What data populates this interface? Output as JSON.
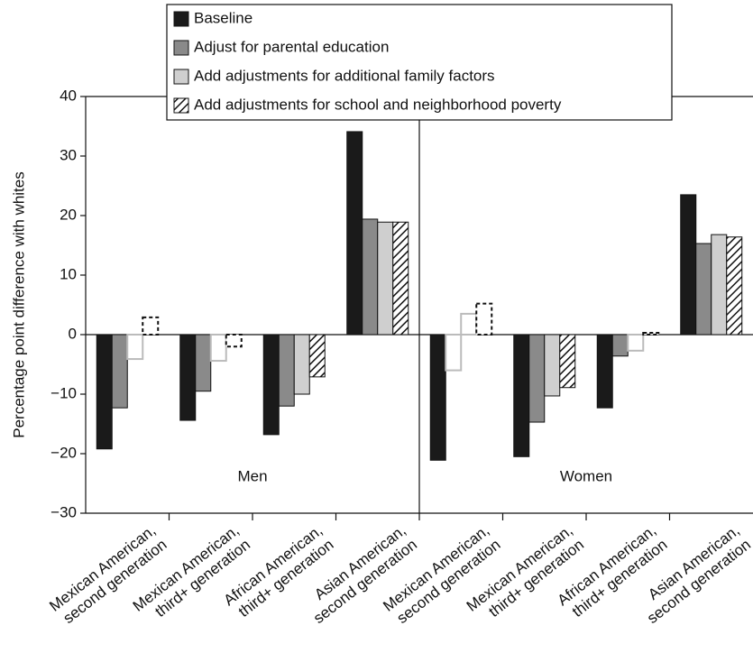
{
  "chart_data": {
    "type": "bar",
    "y_label": "Percentage point difference with whites",
    "categories": [
      [
        "Mexican American,",
        "second generation"
      ],
      [
        "Mexican American,",
        "third+ generation"
      ],
      [
        "African American,",
        "third+ generation"
      ],
      [
        "Asian American,",
        "second generation"
      ],
      [
        "Mexican American,",
        "second generation"
      ],
      [
        "Mexican American,",
        "third+ generation"
      ],
      [
        "African American,",
        "third+ generation"
      ],
      [
        "Asian American,",
        "second generation"
      ]
    ],
    "panels": [
      "Men",
      "Women"
    ],
    "series": [
      {
        "name": "Baseline",
        "color": "#1a1a1a",
        "pattern": "solid",
        "outline_points": [],
        "values": [
          -19.2,
          -14.4,
          -16.8,
          34.1,
          -21.1,
          -20.5,
          -12.3,
          23.5
        ]
      },
      {
        "name": "Adjust for parental education",
        "color": "#8a8a8a",
        "pattern": "solid",
        "outline_points": [
          4
        ],
        "values": [
          -12.3,
          -9.5,
          -12.0,
          19.4,
          -6.0,
          -14.7,
          -3.6,
          15.3
        ]
      },
      {
        "name": "Add adjustments for additional family factors",
        "color": "#cfcfcf",
        "pattern": "solid",
        "outline_points": [
          0,
          1,
          4,
          6
        ],
        "values": [
          -4.1,
          -4.4,
          -10.0,
          18.9,
          3.5,
          -10.3,
          -2.7,
          16.8
        ]
      },
      {
        "name": "Add adjustments for school and neighborhood poverty",
        "color": "#111111",
        "pattern": "hatch",
        "outline_points": [
          0,
          1,
          4,
          6
        ],
        "values": [
          2.9,
          -2.0,
          -7.1,
          18.9,
          5.2,
          -8.9,
          0.3,
          16.4
        ]
      }
    ],
    "ylim": [
      -30,
      40
    ],
    "yticks": [
      {
        "value": -30,
        "label": "−30"
      },
      {
        "value": -20,
        "label": "−20"
      },
      {
        "value": -10,
        "label": "−10"
      },
      0,
      10,
      20,
      30,
      40
    ]
  }
}
